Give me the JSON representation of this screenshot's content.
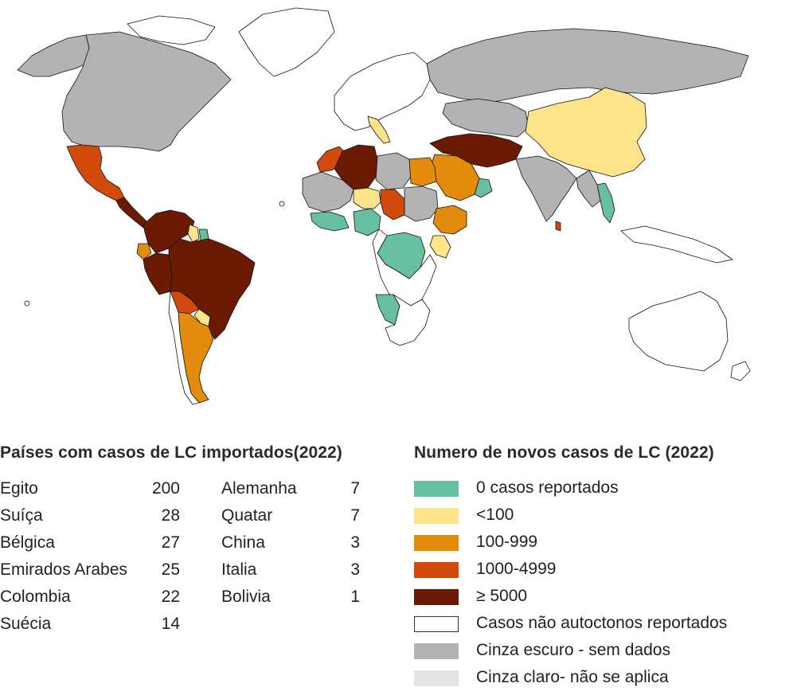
{
  "imported_table": {
    "title": "Países com casos de LC importados(2022)",
    "left_column": [
      {
        "country": "Egito",
        "cases": "200"
      },
      {
        "country": "Suíça",
        "cases": "28"
      },
      {
        "country": "Bélgica",
        "cases": "27"
      },
      {
        "country": "Emirados Arabes",
        "cases": "25"
      },
      {
        "country": "Colombia",
        "cases": "22"
      },
      {
        "country": "Suécia",
        "cases": "14"
      }
    ],
    "right_column": [
      {
        "country": "Alemanha",
        "cases": "7"
      },
      {
        "country": "Quatar",
        "cases": "7"
      },
      {
        "country": "China",
        "cases": "3"
      },
      {
        "country": "Italia",
        "cases": "3"
      },
      {
        "country": "Bolivia",
        "cases": "1"
      }
    ]
  },
  "legend": {
    "title": "Numero de novos casos de LC (2022)",
    "items": [
      {
        "label": "0 casos reportados",
        "color": "#66bfa0"
      },
      {
        "label": "<100",
        "color": "#fde38a"
      },
      {
        "label": "100-999",
        "color": "#e38b0c"
      },
      {
        "label": "1000-4999",
        "color": "#d24b0d"
      },
      {
        "label": "≥ 5000",
        "color": "#6b1a03"
      },
      {
        "label": "Casos não autoctonos reportados",
        "color": "#ffffff"
      },
      {
        "label": "Cinza escuro - sem dados",
        "color": "#b3b3b3"
      },
      {
        "label": "Cinza claro- não se aplica",
        "color": "#e3e3e3"
      }
    ]
  },
  "map": {
    "regions": [
      {
        "name": "Estados Unidos / Canadá",
        "category": "Cinza escuro - sem dados"
      },
      {
        "name": "Alasca",
        "category": "Cinza escuro - sem dados"
      },
      {
        "name": "Groenlândia",
        "category": "Casos não autoctonos reportados"
      },
      {
        "name": "México",
        "category": "1000-4999"
      },
      {
        "name": "América Central",
        "category": "≥ 5000"
      },
      {
        "name": "Venezuela / Colômbia",
        "category": "≥ 5000"
      },
      {
        "name": "Guiana",
        "category": "<100"
      },
      {
        "name": "Suriname",
        "category": "0 casos reportados"
      },
      {
        "name": "Equador",
        "category": "100-999"
      },
      {
        "name": "Brasil",
        "category": "≥ 5000"
      },
      {
        "name": "Peru",
        "category": "≥ 5000"
      },
      {
        "name": "Bolívia",
        "category": "1000-4999"
      },
      {
        "name": "Paraguai",
        "category": "<100"
      },
      {
        "name": "Argentina",
        "category": "100-999"
      },
      {
        "name": "Chile",
        "category": "Casos não autoctonos reportados"
      },
      {
        "name": "Europa",
        "category": "Casos não autoctonos reportados"
      },
      {
        "name": "Itália",
        "category": "<100"
      },
      {
        "name": "Rússia",
        "category": "Cinza escuro - sem dados"
      },
      {
        "name": "Argélia",
        "category": "≥ 5000"
      },
      {
        "name": "Marrocos",
        "category": "1000-4999"
      },
      {
        "name": "Líbia",
        "category": "Cinza escuro - sem dados"
      },
      {
        "name": "Egito",
        "category": "100-999"
      },
      {
        "name": "Sudão",
        "category": "Cinza escuro - sem dados"
      },
      {
        "name": "Arábia Saudita",
        "category": "100-999"
      },
      {
        "name": "Iraque / Irã / Afeganistão",
        "category": "≥ 5000"
      },
      {
        "name": "Paquistão",
        "category": "≥ 5000"
      },
      {
        "name": "Índia",
        "category": "Cinza escuro - sem dados"
      },
      {
        "name": "China",
        "category": "<100"
      },
      {
        "name": "Tailândia",
        "category": "0 casos reportados"
      },
      {
        "name": "Sri Lanka",
        "category": "1000-4999"
      },
      {
        "name": "Mali",
        "category": "Cinza escuro - sem dados"
      },
      {
        "name": "Níger",
        "category": "<100"
      },
      {
        "name": "Chade",
        "category": "1000-4999"
      },
      {
        "name": "Nigéria",
        "category": "0 casos reportados"
      },
      {
        "name": "Etiópia",
        "category": "100-999"
      },
      {
        "name": "Quênia",
        "category": "<100"
      },
      {
        "name": "RD Congo",
        "category": "0 casos reportados"
      },
      {
        "name": "Namíbia",
        "category": "0 casos reportados"
      },
      {
        "name": "África Austral",
        "category": "Casos não autoctonos reportados"
      },
      {
        "name": "Austrália",
        "category": "Casos não autoctonos reportados"
      }
    ]
  }
}
